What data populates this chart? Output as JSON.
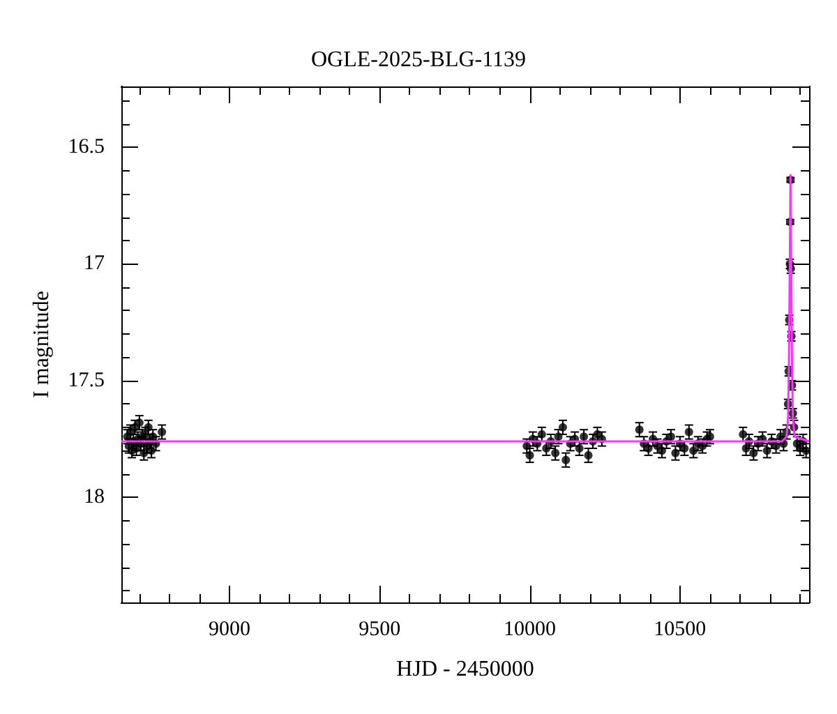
{
  "chart_data": {
    "type": "scatter",
    "title": "OGLE-2025-BLG-1139",
    "xlabel": "HJD - 2450000",
    "ylabel": "I magnitude",
    "xlim": [
      8640,
      10930
    ],
    "ylim": [
      18.45,
      16.24
    ],
    "xticks": [
      {
        "value": 8700,
        "label": null
      },
      {
        "value": 8800,
        "label": null
      },
      {
        "value": 8900,
        "label": null
      },
      9000,
      {
        "value": 9100,
        "label": null
      },
      {
        "value": 9200,
        "label": null
      },
      {
        "value": 9300,
        "label": null
      },
      {
        "value": 9400,
        "label": null
      },
      9500,
      {
        "value": 9600,
        "label": null
      },
      {
        "value": 9700,
        "label": null
      },
      {
        "value": 9800,
        "label": null
      },
      {
        "value": 9900,
        "label": null
      },
      10000,
      {
        "value": 10100,
        "label": null
      },
      {
        "value": 10200,
        "label": null
      },
      {
        "value": 10300,
        "label": null
      },
      {
        "value": 10400,
        "label": null
      },
      10500,
      {
        "value": 10600,
        "label": null
      },
      {
        "value": 10700,
        "label": null
      },
      {
        "value": 10800,
        "label": null
      },
      {
        "value": 10900,
        "label": null
      }
    ],
    "yticks": [
      {
        "value": 16.3,
        "label": null
      },
      {
        "value": 16.4,
        "label": null
      },
      16.5,
      {
        "value": 16.6,
        "label": null
      },
      {
        "value": 16.7,
        "label": null
      },
      {
        "value": 16.8,
        "label": null
      },
      {
        "value": 16.9,
        "label": null
      },
      17,
      {
        "value": 17.1,
        "label": null
      },
      {
        "value": 17.2,
        "label": null
      },
      {
        "value": 17.3,
        "label": null
      },
      {
        "value": 17.4,
        "label": null
      },
      17.5,
      {
        "value": 17.6,
        "label": null
      },
      {
        "value": 17.7,
        "label": null
      },
      {
        "value": 17.8,
        "label": null
      },
      {
        "value": 17.9,
        "label": null
      },
      18,
      {
        "value": 18.1,
        "label": null
      },
      {
        "value": 18.2,
        "label": null
      },
      {
        "value": 18.3,
        "label": null
      },
      {
        "value": 18.4,
        "label": null
      }
    ],
    "grid": false,
    "series": [
      {
        "color": "#000000",
        "marker": "circle",
        "x": [
          8660,
          8665,
          8670,
          8675,
          8680,
          8685,
          8690,
          8695,
          8700,
          8705,
          8710,
          8715,
          8720,
          8725,
          8730,
          8735,
          8740,
          8745,
          8755,
          8775,
          9990,
          10000,
          10010,
          10025,
          10040,
          10055,
          10070,
          10085,
          10095,
          10110,
          10120,
          10135,
          10150,
          10165,
          10180,
          10195,
          10210,
          10225,
          10240,
          10365,
          10380,
          10395,
          10410,
          10425,
          10440,
          10455,
          10470,
          10485,
          10500,
          10515,
          10530,
          10545,
          10560,
          10575,
          10590,
          10600,
          10710,
          10720,
          10730,
          10745,
          10760,
          10775,
          10790,
          10805,
          10820,
          10835,
          10845,
          10855,
          10860,
          10862,
          10864,
          10866,
          10867,
          10868,
          10869,
          10871,
          10873,
          10876,
          10880,
          10890,
          10900,
          10910,
          10920
        ],
        "values": [
          17.74,
          17.78,
          17.72,
          17.8,
          17.76,
          17.7,
          17.79,
          17.75,
          17.68,
          17.77,
          17.74,
          17.81,
          17.73,
          17.78,
          17.7,
          17.76,
          17.8,
          17.74,
          17.77,
          17.72,
          17.78,
          17.82,
          17.75,
          17.77,
          17.73,
          17.79,
          17.76,
          17.81,
          17.74,
          17.7,
          17.84,
          17.77,
          17.75,
          17.79,
          17.74,
          17.82,
          17.76,
          17.73,
          17.75,
          17.71,
          17.77,
          17.79,
          17.75,
          17.78,
          17.8,
          17.76,
          17.74,
          17.81,
          17.77,
          17.79,
          17.72,
          17.8,
          17.77,
          17.78,
          17.75,
          17.74,
          17.73,
          17.79,
          17.76,
          17.81,
          17.77,
          17.75,
          17.8,
          17.76,
          17.78,
          17.74,
          17.77,
          17.72,
          17.6,
          17.46,
          17.24,
          17.0,
          16.82,
          16.64,
          17.02,
          17.31,
          17.52,
          17.64,
          17.7,
          17.77,
          17.79,
          17.76,
          17.8
        ],
        "errors": [
          0.03,
          0.03,
          0.03,
          0.03,
          0.03,
          0.03,
          0.03,
          0.03,
          0.03,
          0.03,
          0.03,
          0.03,
          0.03,
          0.03,
          0.03,
          0.03,
          0.03,
          0.03,
          0.03,
          0.03,
          0.03,
          0.03,
          0.03,
          0.03,
          0.03,
          0.03,
          0.03,
          0.03,
          0.03,
          0.03,
          0.03,
          0.03,
          0.03,
          0.03,
          0.03,
          0.03,
          0.03,
          0.03,
          0.03,
          0.03,
          0.03,
          0.03,
          0.03,
          0.03,
          0.03,
          0.03,
          0.03,
          0.03,
          0.03,
          0.03,
          0.03,
          0.03,
          0.03,
          0.03,
          0.03,
          0.03,
          0.03,
          0.03,
          0.03,
          0.03,
          0.03,
          0.03,
          0.03,
          0.03,
          0.03,
          0.03,
          0.03,
          0.03,
          0.02,
          0.02,
          0.02,
          0.02,
          0.01,
          0.01,
          0.02,
          0.02,
          0.02,
          0.02,
          0.03,
          0.03,
          0.03,
          0.03,
          0.03
        ]
      },
      {
        "type": "line",
        "marker": "none",
        "color": "#ff33ff",
        "x": [
          8640,
          10840,
          10855,
          10860,
          10863,
          10866,
          10868,
          10870,
          10873,
          10876,
          10882,
          10930
        ],
        "values": [
          17.76,
          17.76,
          17.74,
          17.66,
          17.4,
          16.95,
          16.62,
          16.95,
          17.4,
          17.66,
          17.74,
          17.76
        ]
      }
    ]
  }
}
